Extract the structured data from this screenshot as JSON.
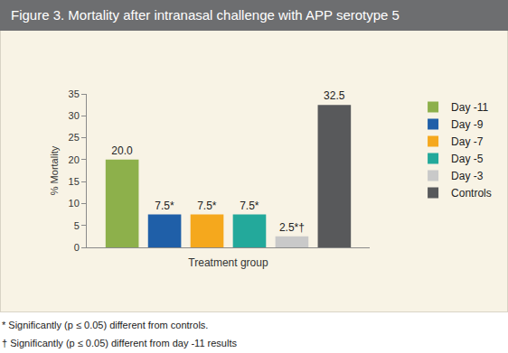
{
  "chart_data": {
    "type": "bar",
    "title": "Figure 3. Mortality after intranasal challenge with APP serotype 5",
    "x_label": "Treatment group",
    "y_label": "% Mortality",
    "categories": [
      null
    ],
    "series": [
      {
        "name": "Day -11",
        "color": "#8db04b",
        "values": [
          20.0
        ],
        "value_labels": [
          "20.0"
        ]
      },
      {
        "name": "Day -9",
        "color": "#1f5fa8",
        "values": [
          7.5
        ],
        "value_labels": [
          "7.5*"
        ]
      },
      {
        "name": "Day -7",
        "color": "#f5a81d",
        "values": [
          7.5
        ],
        "value_labels": [
          "7.5*"
        ]
      },
      {
        "name": "Day -5",
        "color": "#23a99b",
        "values": [
          7.5
        ],
        "value_labels": [
          "7.5*"
        ]
      },
      {
        "name": "Day -3",
        "color": "#c9c9c9",
        "values": [
          2.5
        ],
        "value_labels": [
          "2.5*†"
        ]
      },
      {
        "name": "Controls",
        "color": "#58595b",
        "values": [
          32.5
        ],
        "value_labels": [
          "32.5"
        ]
      }
    ],
    "ylim": [
      0,
      35
    ],
    "yticks": [
      0,
      5,
      10,
      15,
      20,
      25,
      30,
      35
    ],
    "grid": false,
    "legend": "right",
    "data_labels": true,
    "tick_labels": "y",
    "annotations": [
      "* Significantly (p ≤ 0.05) different from controls.",
      "† Significantly (p ≤ 0.05) different from day -11 results"
    ]
  }
}
